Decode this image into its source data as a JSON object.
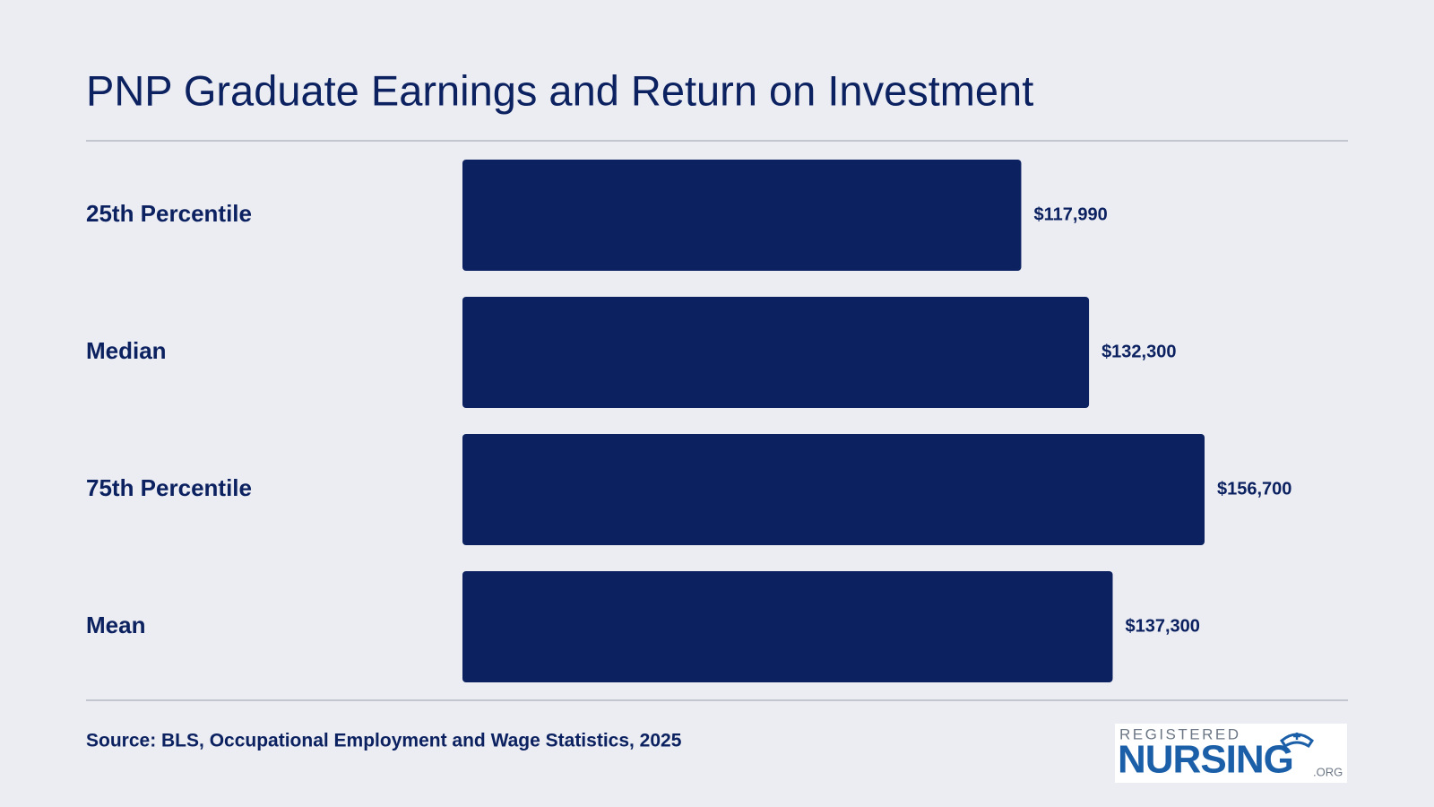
{
  "chart_data": {
    "type": "bar",
    "orientation": "horizontal",
    "title": "PNP Graduate Earnings and Return on Investment",
    "categories": [
      "25th Percentile",
      "Median",
      "75th Percentile",
      "Mean"
    ],
    "values": [
      117990,
      132300,
      156700,
      137300
    ],
    "value_labels": [
      "$117,990",
      "$132,300",
      "$156,700",
      "$137,300"
    ],
    "color": "#0b2160",
    "source": "Source: BLS, Occupational Employment and Wage Statistics, 2025"
  },
  "logo": {
    "top": "REGISTERED",
    "main": "NURSING",
    "suffix": ".ORG"
  }
}
